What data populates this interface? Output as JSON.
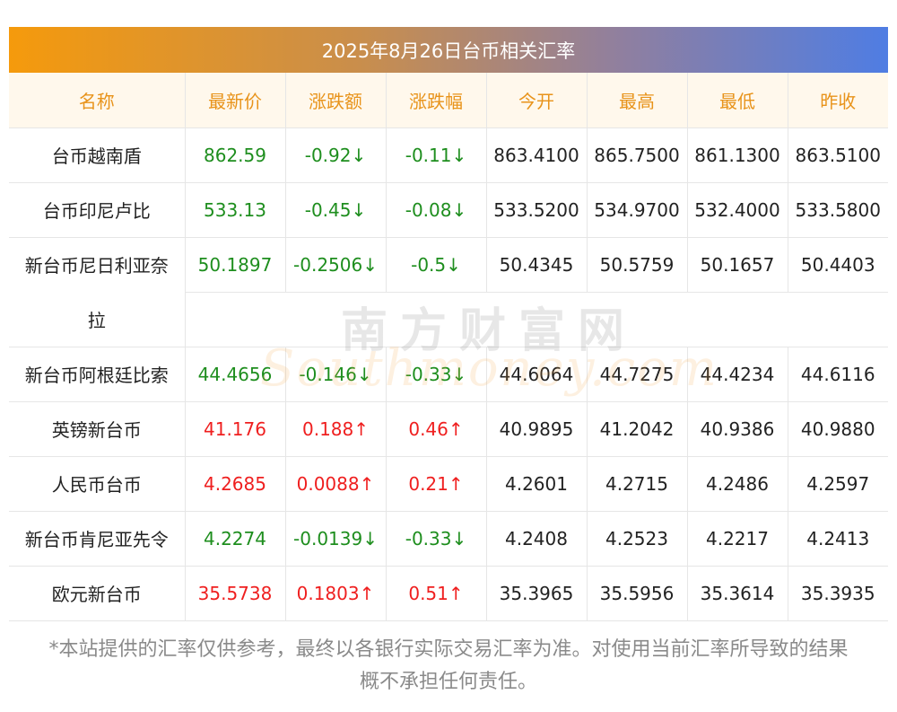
{
  "title": "2025年8月26日台币相关汇率",
  "columns": [
    "名称",
    "最新价",
    "涨跌额",
    "涨跌幅",
    "今开",
    "最高",
    "最低",
    "昨收"
  ],
  "rows": [
    {
      "name": "台币越南盾",
      "latest": "862.59",
      "change": "-0.92↓",
      "pct": "-0.11↓",
      "open": "863.4100",
      "high": "865.7500",
      "low": "861.1300",
      "prev": "863.5100",
      "dir": "down"
    },
    {
      "name": "台币印尼卢比",
      "latest": "533.13",
      "change": "-0.45↓",
      "pct": "-0.08↓",
      "open": "533.5200",
      "high": "534.9700",
      "low": "532.4000",
      "prev": "533.5800",
      "dir": "down"
    },
    {
      "name": "新台币尼日利亚奈",
      "name_cont": "拉",
      "latest": "50.1897",
      "change": "-0.2506↓",
      "pct": "-0.5↓",
      "open": "50.4345",
      "high": "50.5759",
      "low": "50.1657",
      "prev": "50.4403",
      "dir": "down"
    },
    {
      "name": "新台币阿根廷比索",
      "latest": "44.4656",
      "change": "-0.146↓",
      "pct": "-0.33↓",
      "open": "44.6064",
      "high": "44.7275",
      "low": "44.4234",
      "prev": "44.6116",
      "dir": "down"
    },
    {
      "name": "英镑新台币",
      "latest": "41.176",
      "change": "0.188↑",
      "pct": "0.46↑",
      "open": "40.9895",
      "high": "41.2042",
      "low": "40.9386",
      "prev": "40.9880",
      "dir": "up"
    },
    {
      "name": "人民币台币",
      "latest": "4.2685",
      "change": "0.0088↑",
      "pct": "0.21↑",
      "open": "4.2601",
      "high": "4.2715",
      "low": "4.2486",
      "prev": "4.2597",
      "dir": "up"
    },
    {
      "name": "新台币肯尼亚先令",
      "latest": "4.2274",
      "change": "-0.0139↓",
      "pct": "-0.33↓",
      "open": "4.2408",
      "high": "4.2523",
      "low": "4.2217",
      "prev": "4.2413",
      "dir": "down"
    },
    {
      "name": "欧元新台币",
      "latest": "35.5738",
      "change": "0.1803↑",
      "pct": "0.51↑",
      "open": "35.3965",
      "high": "35.5956",
      "low": "35.3614",
      "prev": "35.3935",
      "dir": "up"
    }
  ],
  "watermark": {
    "cn": "南方财富网",
    "en": "Southmoney.com"
  },
  "footer": {
    "line1": "*本站提供的汇率仅供参考，最终以各银行实际交易汇率为准。对使用当前汇率所导致的结果",
    "line2": "概不承担任何责任。"
  },
  "colors": {
    "header_text": "#e8931a",
    "header_bg": "#fff8ec",
    "down": "#1e8e1e",
    "up": "#ef1f1f",
    "gradient_start": "#f59a0c",
    "gradient_end": "#4f7de3"
  }
}
